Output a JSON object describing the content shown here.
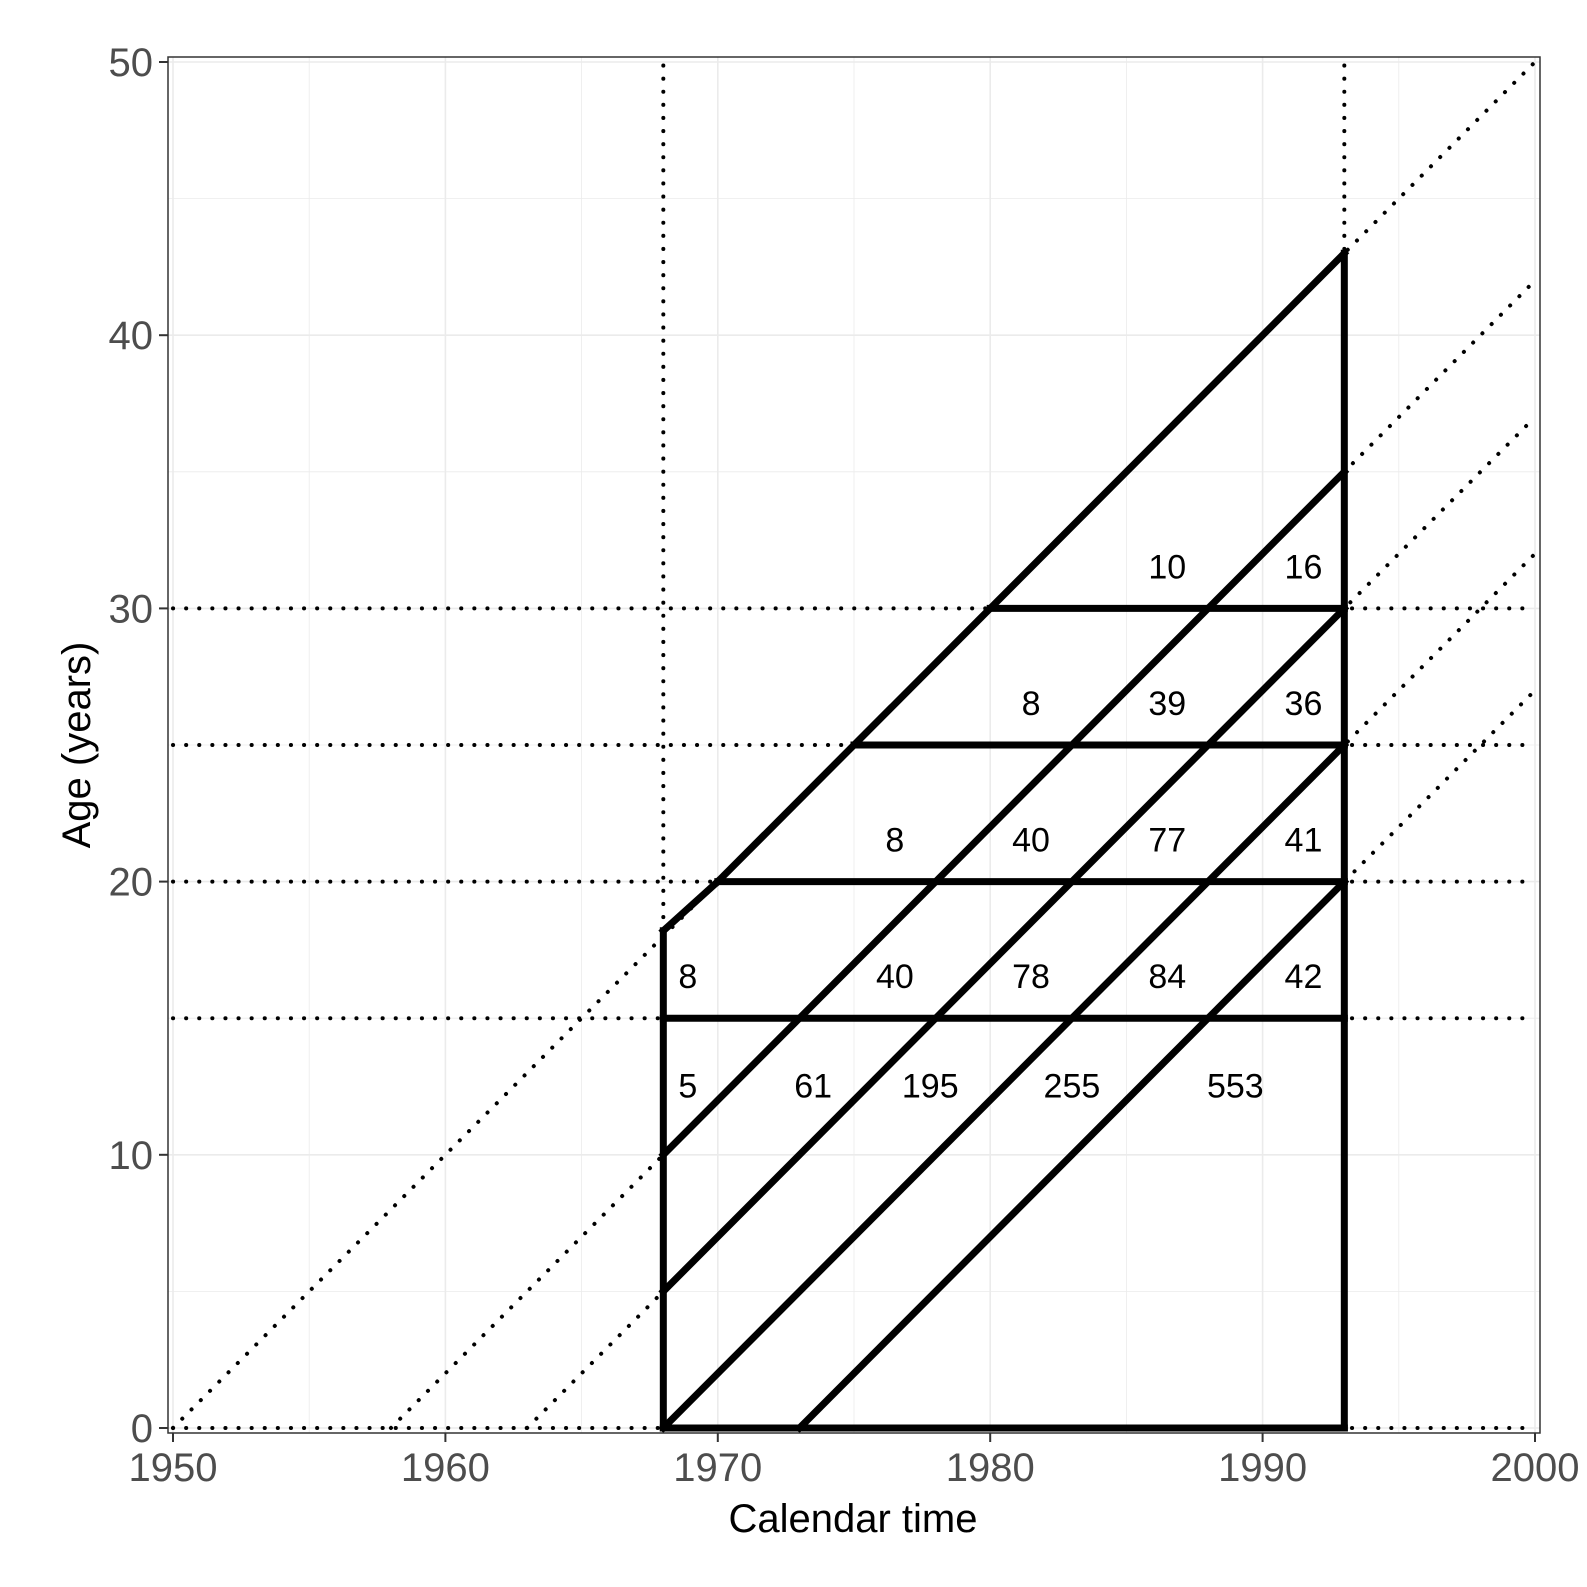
{
  "chart_data": {
    "type": "lexis-diagram",
    "xlabel": "Calendar time",
    "ylabel": "Age (years)",
    "xlim": [
      1950,
      2000
    ],
    "ylim": [
      0,
      50
    ],
    "x_ticks": [
      1950,
      1960,
      1970,
      1980,
      1990,
      2000
    ],
    "y_ticks": [
      0,
      10,
      20,
      30,
      40,
      50
    ],
    "grid": true,
    "minor_grid": true,
    "reference_lines": {
      "style": "dotted",
      "vertical": [
        1968,
        1993
      ],
      "horizontal": [
        0,
        15,
        20,
        25,
        30
      ],
      "diagonal_birth_years": [
        1950,
        1958,
        1963,
        1968,
        1973
      ]
    },
    "follow_up": {
      "style": "solid",
      "start": 1968,
      "end": 1993,
      "age_bands": [
        0,
        15,
        20,
        25,
        30
      ],
      "oldest_birth_year": 1950,
      "age_at_start_oldest": 18.2,
      "cohort_births": [
        1958,
        1963,
        1968,
        1973
      ]
    },
    "cell_counts": [
      {
        "x": 1968.9,
        "y": 12.5,
        "value": 5
      },
      {
        "x": 1973.5,
        "y": 12.5,
        "value": 61
      },
      {
        "x": 1977.8,
        "y": 12.5,
        "value": 195
      },
      {
        "x": 1983.0,
        "y": 12.5,
        "value": 255
      },
      {
        "x": 1989.0,
        "y": 12.5,
        "value": 553
      },
      {
        "x": 1968.9,
        "y": 16.5,
        "value": 8
      },
      {
        "x": 1976.5,
        "y": 16.5,
        "value": 40
      },
      {
        "x": 1981.5,
        "y": 16.5,
        "value": 78
      },
      {
        "x": 1986.5,
        "y": 16.5,
        "value": 84
      },
      {
        "x": 1991.5,
        "y": 16.5,
        "value": 42
      },
      {
        "x": 1976.5,
        "y": 21.5,
        "value": 8
      },
      {
        "x": 1981.5,
        "y": 21.5,
        "value": 40
      },
      {
        "x": 1986.5,
        "y": 21.5,
        "value": 77
      },
      {
        "x": 1991.5,
        "y": 21.5,
        "value": 41
      },
      {
        "x": 1981.5,
        "y": 26.5,
        "value": 8
      },
      {
        "x": 1986.5,
        "y": 26.5,
        "value": 39
      },
      {
        "x": 1991.5,
        "y": 26.5,
        "value": 36
      },
      {
        "x": 1986.5,
        "y": 31.5,
        "value": 10
      },
      {
        "x": 1991.5,
        "y": 31.5,
        "value": 16
      }
    ]
  }
}
